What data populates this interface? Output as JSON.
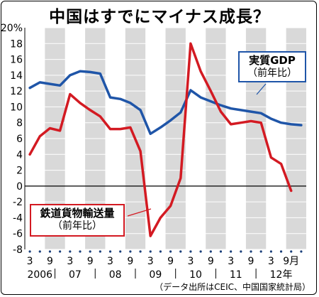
{
  "title": "中国はすでにマイナス成長？",
  "source_note": "（データ出所はCEIC、中国国家統計局）",
  "colors": {
    "gdp": "#1f55a8",
    "rail": "#d31a22",
    "stripe": "#d9d9d9",
    "axis": "#000000"
  },
  "chart_data": {
    "type": "line",
    "ylim": [
      -8,
      20
    ],
    "y_ticks": [
      "20%",
      "18",
      "16",
      "14",
      "12",
      "10",
      "8",
      "6",
      "4",
      "2",
      "0",
      "-2",
      "-4",
      "-6",
      "-8"
    ],
    "x_month_labels": [
      "3",
      "9",
      "3",
      "9",
      "3",
      "9",
      "3",
      "9",
      "3",
      "9",
      "3",
      "9",
      "3",
      "9月"
    ],
    "x_year_labels": [
      "2006",
      "07",
      "08",
      "09",
      "10",
      "11",
      "12年"
    ],
    "series": [
      {
        "name": "実質GDP",
        "subtitle": "（前年比）",
        "values": [
          12.4,
          13.1,
          12.9,
          12.7,
          14.0,
          14.5,
          14.4,
          14.2,
          11.2,
          11.0,
          10.5,
          9.6,
          6.6,
          7.4,
          8.3,
          9.3,
          12.1,
          11.2,
          10.7,
          10.2,
          9.8,
          9.6,
          9.4,
          9.2,
          8.5,
          8.0,
          7.8,
          7.7
        ]
      },
      {
        "name": "鉄道貨物輸送量",
        "subtitle": "（前年比）",
        "values": [
          4.0,
          6.3,
          7.3,
          7.0,
          11.6,
          10.5,
          9.6,
          8.8,
          7.2,
          7.2,
          7.4,
          4.4,
          -6.3,
          -4.0,
          -2.5,
          1.0,
          18.0,
          14.5,
          12.0,
          9.4,
          7.8,
          8.0,
          8.2,
          8.0,
          3.6,
          2.8,
          -0.6
        ]
      }
    ]
  }
}
